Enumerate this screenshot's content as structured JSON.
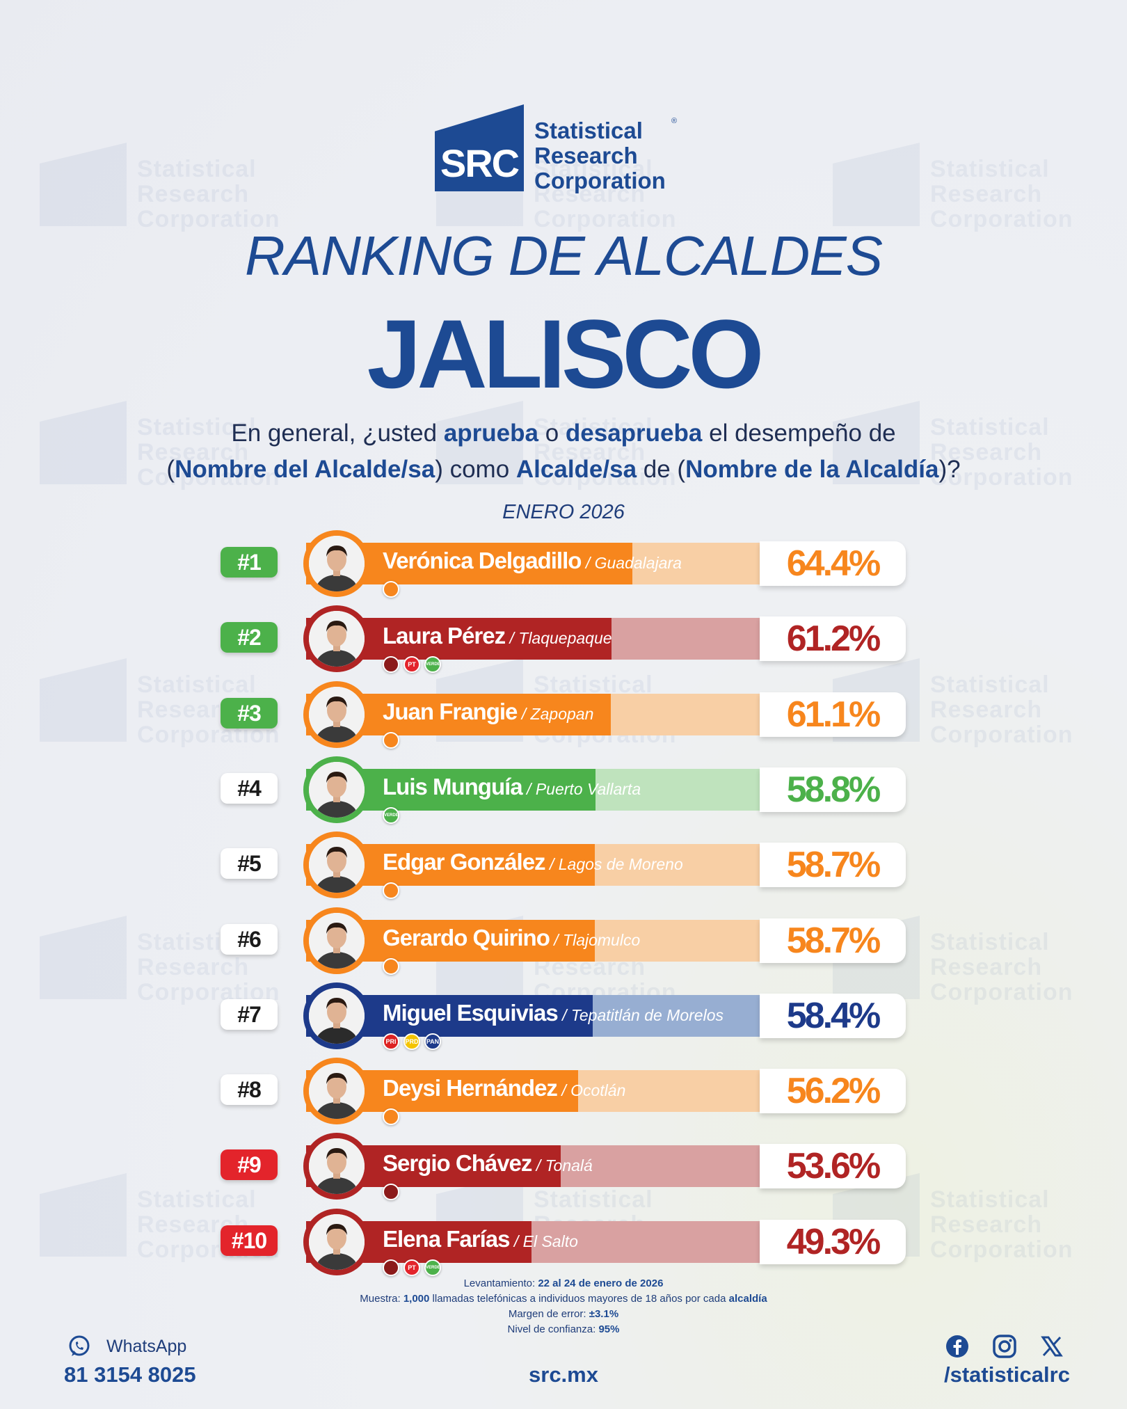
{
  "brand": {
    "logo_mark": "SRC",
    "name_line1": "Statistical",
    "name_line2": "Research",
    "name_line3": "Corporation",
    "registered": "®"
  },
  "header": {
    "title": "RANKING DE ALCALDES",
    "state": "JALISCO"
  },
  "question": {
    "p1": "En general, ¿usted ",
    "p2": "aprueba",
    "p3": " o ",
    "p4": "desaprueba",
    "p5": " el desempeño de",
    "p6": "(",
    "p7": "Nombre del Alcalde/sa",
    "p8": ") como ",
    "p9": "Alcalde/sa",
    "p10": " de (",
    "p11": "Nombre de la Alcaldía",
    "p12": ")?"
  },
  "period": "ENERO 2026",
  "colors": {
    "orange": "#f7861d",
    "red": "#b02424",
    "green": "#4cb14a",
    "blue": "#1d3a8a",
    "rank_green": "#4cb14a",
    "rank_white": "#ffffff",
    "rank_red": "#e3242b"
  },
  "chart_data": {
    "type": "bar",
    "title": "RANKING DE ALCALDES",
    "categories": [
      "Verónica Delgadillo",
      "Laura Pérez",
      "Juan Frangie",
      "Luis Munguía",
      "Edgar González",
      "Gerardo Quirino",
      "Miguel Esquivias",
      "Deysi Hernández",
      "Sergio Chávez",
      "Elena Farías"
    ],
    "values": [
      64.4,
      61.2,
      61.1,
      58.8,
      58.7,
      58.7,
      58.4,
      56.2,
      53.6,
      49.3
    ],
    "ylim": [
      0,
      100
    ],
    "rows": [
      {
        "rank": "#1",
        "name": "Verónica Delgadillo",
        "city": " / Guadalajara",
        "value": 64.4,
        "label": "64.4%",
        "color": "orange",
        "rank_style": "green",
        "parties": [
          "mc"
        ]
      },
      {
        "rank": "#2",
        "name": "Laura Pérez",
        "city": " / Tlaquepaque",
        "value": 61.2,
        "label": "61.2%",
        "color": "red",
        "rank_style": "green",
        "parties": [
          "morena",
          "pt",
          "verde"
        ]
      },
      {
        "rank": "#3",
        "name": "Juan Frangie",
        "city": " / Zapopan",
        "value": 61.1,
        "label": "61.1%",
        "color": "orange",
        "rank_style": "green",
        "parties": [
          "mc"
        ]
      },
      {
        "rank": "#4",
        "name": "Luis Munguía",
        "city": " / Puerto Vallarta",
        "value": 58.8,
        "label": "58.8%",
        "color": "green",
        "rank_style": "white",
        "parties": [
          "verde"
        ]
      },
      {
        "rank": "#5",
        "name": "Edgar González",
        "city": " / Lagos de Moreno",
        "value": 58.7,
        "label": "58.7%",
        "color": "orange",
        "rank_style": "white",
        "parties": [
          "mc"
        ]
      },
      {
        "rank": "#6",
        "name": "Gerardo Quirino",
        "city": " / Tlajomulco",
        "value": 58.7,
        "label": "58.7%",
        "color": "orange",
        "rank_style": "white",
        "parties": [
          "mc"
        ]
      },
      {
        "rank": "#7",
        "name": "Miguel Esquivias",
        "city": " / Tepatitlán de Morelos",
        "value": 58.4,
        "label": "58.4%",
        "color": "blue",
        "rank_style": "white",
        "parties": [
          "pri",
          "prd",
          "pan"
        ]
      },
      {
        "rank": "#8",
        "name": "Deysi Hernández",
        "city": " / Ocotlán",
        "value": 56.2,
        "label": "56.2%",
        "color": "orange",
        "rank_style": "white",
        "parties": [
          "mc"
        ]
      },
      {
        "rank": "#9",
        "name": "Sergio Chávez",
        "city": " / Tonalá",
        "value": 53.6,
        "label": "53.6%",
        "color": "red",
        "rank_style": "red",
        "parties": [
          "morena"
        ]
      },
      {
        "rank": "#10",
        "name": "Elena Farías",
        "city": " / El Salto",
        "value": 49.3,
        "label": "49.3%",
        "color": "red",
        "rank_style": "red",
        "parties": [
          "morena",
          "pt",
          "verde"
        ]
      }
    ]
  },
  "parties": {
    "mc": {
      "text": "",
      "color": "#f7861d"
    },
    "morena": {
      "text": "",
      "color": "#8b1a1a"
    },
    "pt": {
      "text": "PT",
      "color": "#e3242b"
    },
    "verde": {
      "text": "VERDE",
      "color": "#4cb14a"
    },
    "pri": {
      "text": "PRI",
      "color": "#d22"
    },
    "prd": {
      "text": "PRD",
      "color": "#f4c400"
    },
    "pan": {
      "text": "PAN",
      "color": "#1d3a8a"
    }
  },
  "methodology": {
    "l1a": "Levantamiento: ",
    "l1b": "22 al 24 de enero de 2026",
    "l2a": "Muestra: ",
    "l2b": "1,000",
    "l2c": " llamadas telefónicas a individuos mayores de 18 años por cada ",
    "l2d": "alcaldía",
    "l3a": "Margen de error: ",
    "l3b": "±3.1%",
    "l4a": "Nivel de confianza: ",
    "l4b": "95%"
  },
  "footer": {
    "whatsapp_label": "WhatsApp",
    "phone": "81 3154 8025",
    "site": "src.mx",
    "handle": "/statisticalrc",
    "icons": [
      "whatsapp-icon",
      "facebook-icon",
      "instagram-icon",
      "x-icon"
    ]
  }
}
